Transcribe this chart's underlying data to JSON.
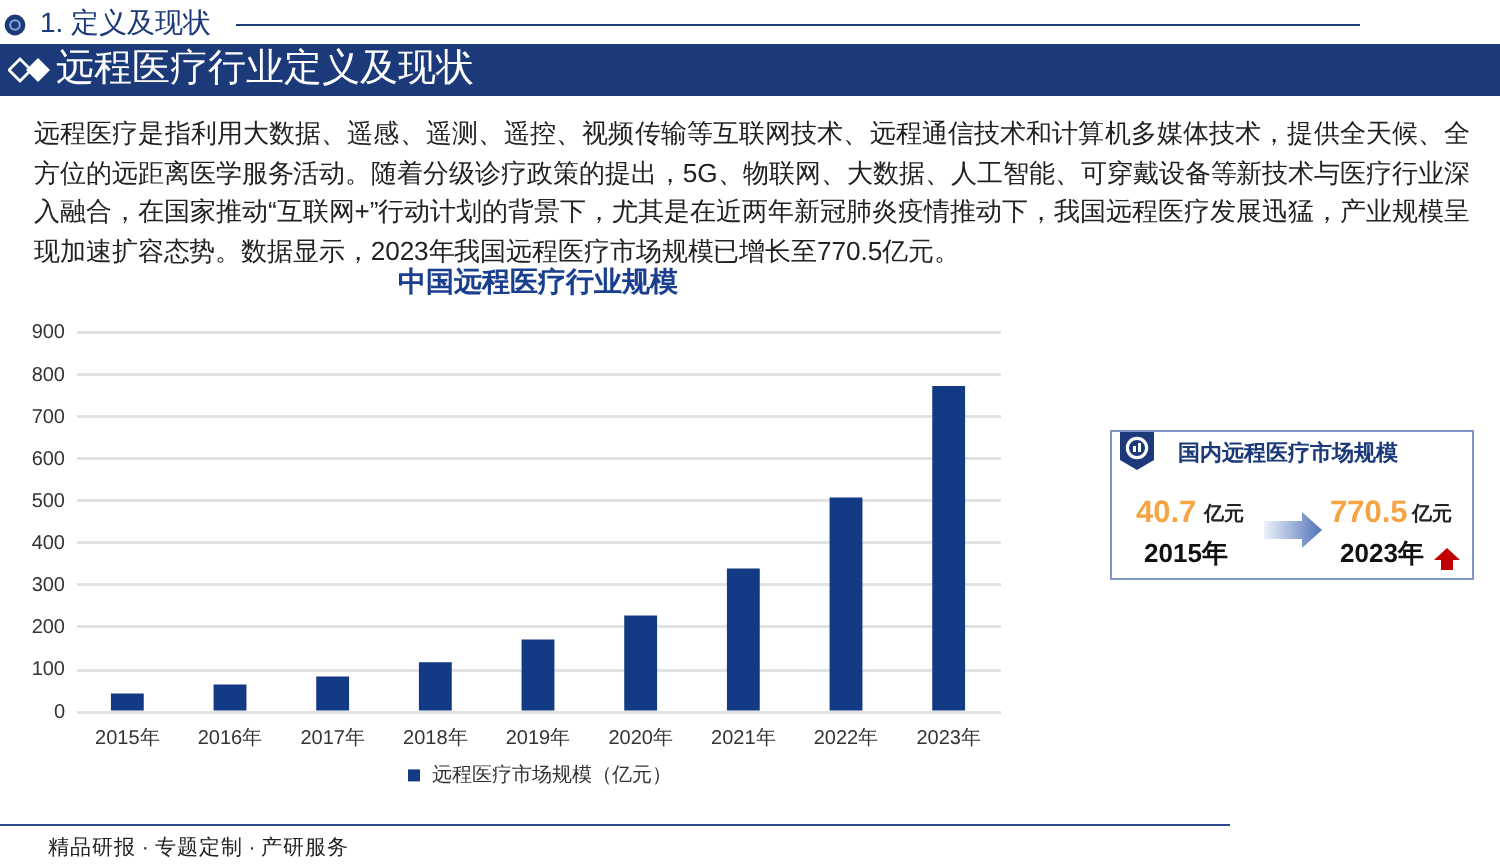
{
  "chart_data": [
    {
      "type": "other",
      "title": "远程医疗行业定义及现状",
      "annotations": [
        "1. 定义及现状",
        "远程医疗是指利用大数据、遥感、遥测、遥控、视频传输等互联网技术、远程通信技术和计算机多媒体技术，提供全天候、全方位的远距离医学服务活动。随着分级诊疗政策的提出，5G、物联网、大数据、人工智能、可穿戴设备等新技术与医疗行业深入融合，在国家推动“互联网+”行动计划的背景下，尤其是在近两年新冠肺炎疫情推动下，我国远程医疗发展迅猛，产业规模呈现加速扩容态势。数据显示，2023年我国远程医疗市场规模已增长至770.5亿元。"
      ]
    },
    {
      "type": "bar",
      "title": "中国远程医疗行业规模",
      "categories": [
        "2015年",
        "2016年",
        "2017年",
        "2018年",
        "2019年",
        "2020年",
        "2021年",
        "2022年",
        "2023年"
      ],
      "series": [
        {
          "name": "远程医疗市场规模（亿元）",
          "color": "#123a85",
          "values": [
            40.7,
            62,
            81,
            115,
            169,
            226,
            337,
            506,
            770.5
          ]
        }
      ],
      "ylim": [
        0,
        900
      ],
      "yticks": [
        0,
        100,
        200,
        300,
        400,
        500,
        600,
        700,
        800,
        900
      ],
      "grid": "y",
      "legend": "bottom",
      "annotations": [
        "精品研报 · 专题定制 · 产研服务"
      ]
    },
    {
      "type": "other",
      "title": "国内远程医疗市场规模",
      "annotations": [
        "40.7",
        "亿元",
        "2015年",
        "770.5",
        "亿元",
        "2023年"
      ]
    }
  ]
}
